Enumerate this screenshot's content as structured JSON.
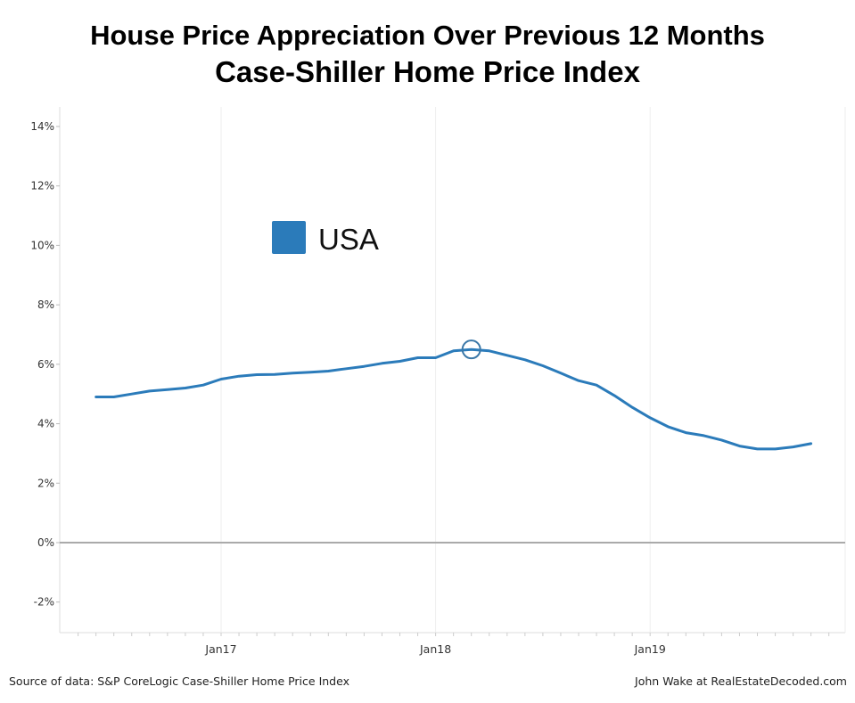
{
  "chart_data": {
    "type": "line",
    "title": "House Price Appreciation Over Previous 12 Months",
    "subtitle": "Case-Shiller Home Price Index",
    "xlabel": "",
    "ylabel": "",
    "x_tick_labels": [
      "Jan17",
      "Jan18",
      "Jan19"
    ],
    "y_tick_labels": [
      "14%",
      "12%",
      "10%",
      "8%",
      "6%",
      "4%",
      "2%",
      "0%",
      "-2%"
    ],
    "ylim": [
      -3,
      14.5
    ],
    "grid": true,
    "legend": {
      "placement": "top-left",
      "entries": [
        "USA"
      ]
    },
    "highlight": {
      "x": "2018-03",
      "marker": "circle"
    },
    "series": [
      {
        "name": "USA",
        "color": "#2b7bba",
        "x": [
          "2016-06",
          "2016-07",
          "2016-08",
          "2016-09",
          "2016-10",
          "2016-11",
          "2016-12",
          "2017-01",
          "2017-02",
          "2017-03",
          "2017-04",
          "2017-05",
          "2017-06",
          "2017-07",
          "2017-08",
          "2017-09",
          "2017-10",
          "2017-11",
          "2017-12",
          "2018-01",
          "2018-02",
          "2018-03",
          "2018-04",
          "2018-05",
          "2018-06",
          "2018-07",
          "2018-08",
          "2018-09",
          "2018-10",
          "2018-11",
          "2018-12",
          "2019-01",
          "2019-02",
          "2019-03",
          "2019-04",
          "2019-05",
          "2019-06",
          "2019-07",
          "2019-08",
          "2019-09",
          "2019-10"
        ],
        "values": [
          4.9,
          4.9,
          5.0,
          5.1,
          5.15,
          5.2,
          5.3,
          5.5,
          5.6,
          5.65,
          5.66,
          5.7,
          5.73,
          5.77,
          5.85,
          5.93,
          6.03,
          6.1,
          6.22,
          6.22,
          6.45,
          6.5,
          6.45,
          6.3,
          6.15,
          5.95,
          5.7,
          5.45,
          5.3,
          4.95,
          4.55,
          4.2,
          3.9,
          3.7,
          3.6,
          3.45,
          3.25,
          3.15,
          3.15,
          3.22,
          3.33
        ]
      }
    ]
  },
  "footer": {
    "source": "Source of data: S&P CoreLogic Case-Shiller Home Price Index",
    "credit": "John Wake at RealEstateDecoded.com"
  }
}
